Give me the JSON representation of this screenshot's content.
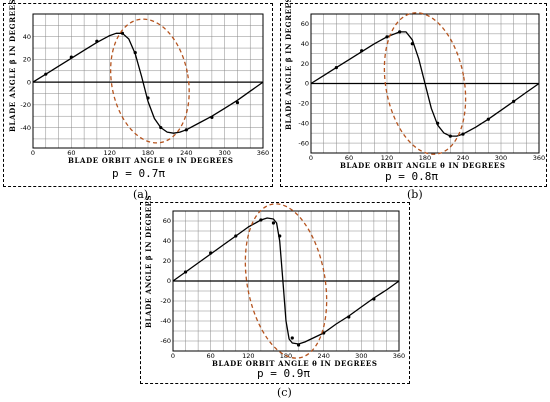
{
  "chart_data": [
    {
      "type": "line",
      "id": "a",
      "caption": "(a)",
      "param_label": "p = 0.7π",
      "xlabel": "BLADE ORBIT ANGLE θ IN DEGREES",
      "ylabel": "BLADE ANGLE β IN DEGREES",
      "xlim": [
        0,
        360
      ],
      "ylim": [
        -58,
        60
      ],
      "x_ticks": [
        0,
        60,
        120,
        180,
        240,
        300,
        360
      ],
      "y_ticks": [
        -40,
        -20,
        0,
        20,
        40
      ],
      "grid": true,
      "series": [
        {
          "kind": "curve",
          "x": [
            0,
            20,
            40,
            60,
            80,
            100,
            120,
            130,
            140,
            150,
            160,
            170,
            180,
            190,
            200,
            210,
            220,
            230,
            240,
            260,
            280,
            300,
            320,
            340,
            360
          ],
          "y": [
            0,
            7,
            14,
            21,
            28,
            35,
            41,
            43,
            43,
            38,
            25,
            5,
            -17,
            -32,
            -40,
            -44,
            -45,
            -44,
            -42,
            -36,
            -30,
            -23,
            -16,
            -8,
            0
          ]
        },
        {
          "kind": "markers",
          "x": [
            20,
            60,
            100,
            140,
            160,
            180,
            200,
            240,
            280,
            320
          ],
          "y": [
            7,
            22,
            36,
            43,
            26,
            -14,
            -40,
            -42,
            -31,
            -18
          ]
        }
      ],
      "ellipse": {
        "cx": 183,
        "cy": 1,
        "rx": 60,
        "ry": 55,
        "color": "#b5541f"
      }
    },
    {
      "type": "line",
      "id": "b",
      "caption": "(b)",
      "param_label": "p = 0.8π",
      "xlabel": "BLADE ORBIT ANGLE θ IN DEGREES",
      "ylabel": "BLADE ANGLE β IN DEGREES",
      "xlim": [
        0,
        360
      ],
      "ylim": [
        -70,
        70
      ],
      "x_ticks": [
        0,
        60,
        120,
        180,
        240,
        300,
        360
      ],
      "y_ticks": [
        -60,
        -40,
        -20,
        0,
        20,
        40,
        60
      ],
      "grid": true,
      "series": [
        {
          "kind": "curve",
          "x": [
            0,
            20,
            40,
            60,
            80,
            100,
            120,
            140,
            150,
            160,
            170,
            180,
            190,
            200,
            210,
            220,
            230,
            240,
            260,
            280,
            300,
            320,
            340,
            360
          ],
          "y": [
            0,
            8,
            16,
            24,
            32,
            40,
            47,
            52,
            52,
            44,
            25,
            0,
            -25,
            -42,
            -50,
            -53,
            -53,
            -51,
            -44,
            -36,
            -27,
            -18,
            -9,
            0
          ]
        },
        {
          "kind": "markers",
          "x": [
            40,
            80,
            120,
            140,
            160,
            200,
            220,
            240,
            280,
            320
          ],
          "y": [
            16,
            33,
            47,
            52,
            40,
            -40,
            -53,
            -51,
            -36,
            -18
          ]
        }
      ],
      "ellipse": {
        "cx": 180,
        "cy": 0,
        "rx": 62,
        "ry": 72,
        "color": "#b5541f"
      }
    },
    {
      "type": "line",
      "id": "c",
      "caption": "(c)",
      "param_label": "p = 0.9π",
      "xlabel": "BLADE ORBIT ANGLE θ IN DEGREES",
      "ylabel": "BLADE ANGLE β IN DEGREES",
      "xlim": [
        0,
        360
      ],
      "ylim": [
        -70,
        70
      ],
      "x_ticks": [
        0,
        60,
        120,
        180,
        240,
        300,
        360
      ],
      "y_ticks": [
        -60,
        -40,
        -20,
        0,
        20,
        40,
        60
      ],
      "grid": true,
      "series": [
        {
          "kind": "curve",
          "x": [
            0,
            20,
            40,
            60,
            80,
            100,
            120,
            140,
            150,
            160,
            165,
            170,
            175,
            180,
            185,
            190,
            200,
            210,
            220,
            240,
            260,
            280,
            300,
            320,
            340,
            360
          ],
          "y": [
            0,
            9,
            18,
            27,
            36,
            45,
            54,
            61,
            63,
            62,
            58,
            40,
            0,
            -40,
            -58,
            -62,
            -63,
            -61,
            -58,
            -52,
            -43,
            -35,
            -26,
            -17,
            -9,
            0
          ]
        },
        {
          "kind": "markers",
          "x": [
            20,
            60,
            100,
            140,
            160,
            170,
            190,
            200,
            240,
            280,
            320
          ],
          "y": [
            9,
            28,
            45,
            61,
            58,
            45,
            -57,
            -64,
            -52,
            -36,
            -18
          ]
        }
      ],
      "ellipse": {
        "cx": 180,
        "cy": 0,
        "rx": 62,
        "ry": 78,
        "color": "#b5541f"
      }
    }
  ]
}
